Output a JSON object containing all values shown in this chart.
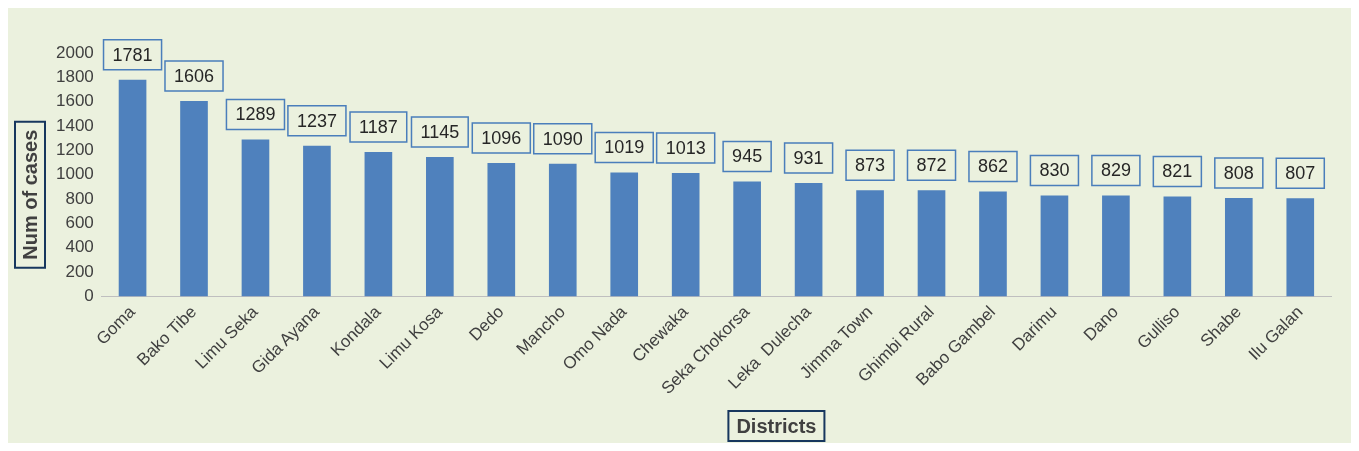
{
  "chart_data": {
    "type": "bar",
    "xlabel": "Districts",
    "ylabel": "Num of cases",
    "categories": [
      "Goma",
      "Bako Tibe",
      "Limu Seka",
      "Gida Ayana",
      "Kondala",
      "Limu Kosa",
      "Dedo",
      "Mancho",
      "Omo Nada",
      "Chewaka",
      "Seka Chokorsa",
      "Leka  Dulecha",
      "Jimma Town",
      "Ghimbi Rural",
      "Babo Gambel",
      "Darimu",
      "Dano",
      "Gulliso",
      "Shabe",
      "Ilu Galan"
    ],
    "values": [
      1781,
      1606,
      1289,
      1237,
      1187,
      1145,
      1096,
      1090,
      1019,
      1013,
      945,
      931,
      873,
      872,
      862,
      830,
      829,
      821,
      808,
      807
    ],
    "color": "#4f81bd",
    "ylim": [
      0,
      2000
    ],
    "yticks": [
      0,
      200,
      400,
      600,
      800,
      1000,
      1200,
      1400,
      1600,
      1800,
      2000
    ],
    "grid": false,
    "legend": false,
    "data_labels": true
  }
}
